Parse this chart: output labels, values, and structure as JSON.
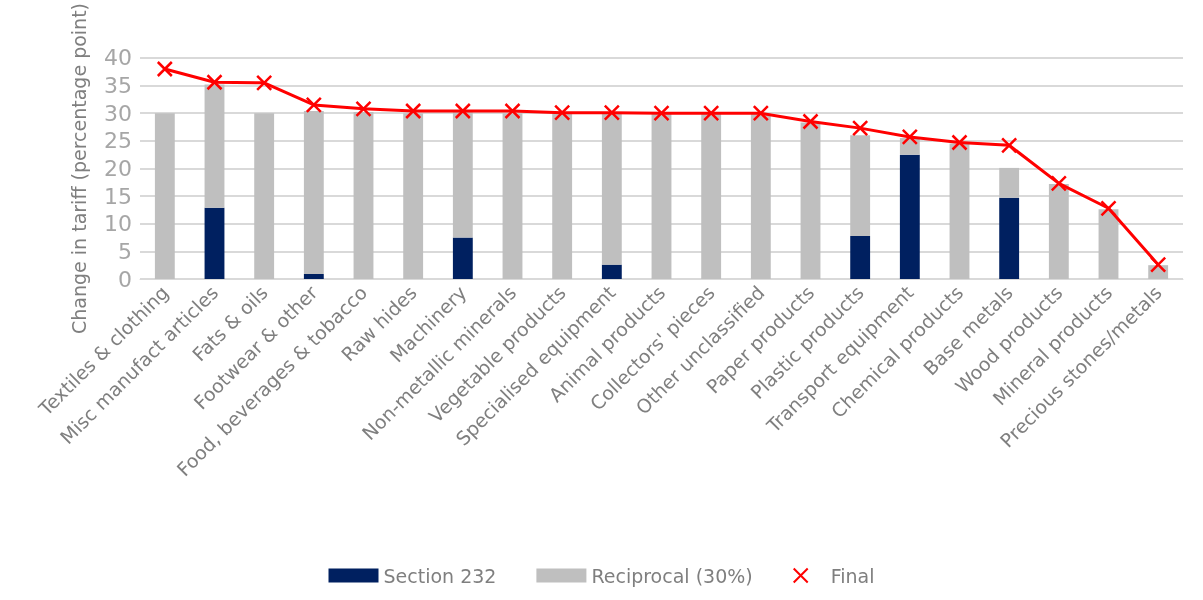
{
  "chart_data": {
    "type": "bar",
    "stacked": true,
    "ylabel": "Change in tariff (percentage point)",
    "categories": [
      "Textiles & clothing",
      "Misc manufact articles",
      "Fats & oils",
      "Footwear & other",
      "Food, beverages & tobacco",
      "Raw hides",
      "Machinery",
      "Non-metallic minerals",
      "Vegetable products",
      "Specialised equipment",
      "Animal products",
      "Collectors' pieces",
      "Other unclassified",
      "Paper products",
      "Plastic products",
      "Transport equipment",
      "Chemical products",
      "Base metals",
      "Wood products",
      "Mineral products",
      "Precious stones/metals"
    ],
    "series": [
      {
        "name": "Section 232",
        "color": "#002060",
        "values": [
          0,
          12.9,
          0,
          0.9,
          0,
          0,
          7.5,
          0,
          0,
          2.6,
          0,
          0,
          0,
          0,
          7.8,
          22.5,
          0,
          14.7,
          0,
          0,
          0
        ]
      },
      {
        "name": "Reciprocal (30%)",
        "color": "#bfbfbf",
        "values": [
          30,
          22.3,
          30,
          29.5,
          30.2,
          30,
          22.7,
          30,
          30,
          27.4,
          30,
          30,
          30,
          28.3,
          18.2,
          3,
          24.5,
          5.4,
          17.2,
          12.6,
          2.5
        ]
      },
      {
        "name": "Final",
        "type": "line",
        "color": "#ff0000",
        "marker": "cross",
        "values": [
          38,
          35.6,
          35.5,
          31.5,
          30.8,
          30.4,
          30.4,
          30.4,
          30.1,
          30.1,
          30,
          30,
          30,
          28.5,
          27.3,
          25.7,
          24.7,
          24.2,
          17.3,
          12.8,
          2.6
        ]
      }
    ],
    "ylim": [
      0,
      40
    ],
    "yticks": [
      0,
      5,
      10,
      15,
      20,
      25,
      30,
      35,
      40
    ],
    "grid": "y",
    "legend": "bottom"
  }
}
